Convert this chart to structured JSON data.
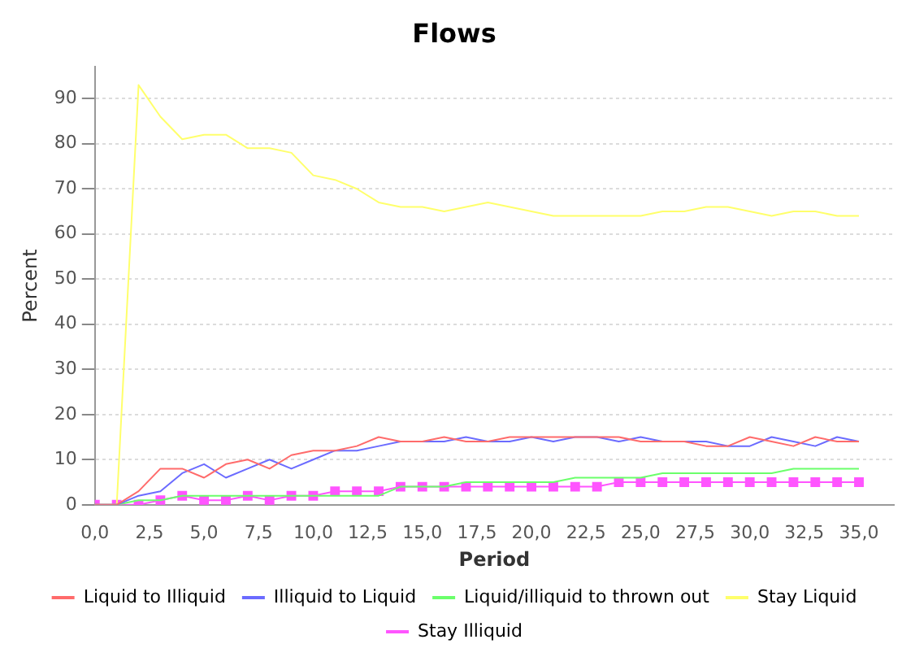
{
  "chart_data": {
    "type": "line",
    "title": "Flows",
    "xlabel": "Period",
    "ylabel": "Percent",
    "x": [
      0,
      1,
      2,
      3,
      4,
      5,
      6,
      7,
      8,
      9,
      10,
      11,
      12,
      13,
      14,
      15,
      16,
      17,
      18,
      19,
      20,
      21,
      22,
      23,
      24,
      25,
      26,
      27,
      28,
      29,
      30,
      31,
      32,
      33,
      34,
      35
    ],
    "xlim": [
      0,
      36.6
    ],
    "ylim": [
      0,
      97
    ],
    "xticks": [
      {
        "value": 0,
        "label": "0,0"
      },
      {
        "value": 2.5,
        "label": "2,5"
      },
      {
        "value": 5,
        "label": "5,0"
      },
      {
        "value": 7.5,
        "label": "7,5"
      },
      {
        "value": 10,
        "label": "10,0"
      },
      {
        "value": 12.5,
        "label": "12,5"
      },
      {
        "value": 15,
        "label": "15,0"
      },
      {
        "value": 17.5,
        "label": "17,5"
      },
      {
        "value": 20,
        "label": "20,0"
      },
      {
        "value": 22.5,
        "label": "22,5"
      },
      {
        "value": 25,
        "label": "25,0"
      },
      {
        "value": 27.5,
        "label": "27,5"
      },
      {
        "value": 30,
        "label": "30,0"
      },
      {
        "value": 32.5,
        "label": "32,5"
      },
      {
        "value": 35,
        "label": "35,0"
      }
    ],
    "yticks": [
      0,
      10,
      20,
      30,
      40,
      50,
      60,
      70,
      80,
      90
    ],
    "grid": "y",
    "legend": "bottom",
    "series": [
      {
        "name": "Liquid to Illiquid",
        "color": "#ff6b6b",
        "marker": "none",
        "values": [
          0,
          0,
          3,
          8,
          8,
          6,
          9,
          10,
          8,
          11,
          12,
          12,
          13,
          15,
          14,
          14,
          15,
          14,
          14,
          15,
          15,
          15,
          15,
          15,
          15,
          14,
          14,
          14,
          13,
          13,
          15,
          14,
          13,
          15,
          14,
          14
        ]
      },
      {
        "name": "Illiquid to Liquid",
        "color": "#6b6bff",
        "marker": "none",
        "values": [
          0,
          0,
          2,
          3,
          7,
          9,
          6,
          8,
          10,
          8,
          10,
          12,
          12,
          13,
          14,
          14,
          14,
          15,
          14,
          14,
          15,
          14,
          15,
          15,
          14,
          15,
          14,
          14,
          14,
          13,
          13,
          15,
          14,
          13,
          15,
          14
        ]
      },
      {
        "name": "Liquid/illiquid to thrown out",
        "color": "#6bff6b",
        "marker": "none",
        "values": [
          0,
          0,
          1,
          1,
          2,
          2,
          2,
          2,
          2,
          2,
          2,
          2,
          2,
          2,
          4,
          4,
          4,
          5,
          5,
          5,
          5,
          5,
          6,
          6,
          6,
          6,
          7,
          7,
          7,
          7,
          7,
          7,
          8,
          8,
          8,
          8
        ]
      },
      {
        "name": "Stay Liquid",
        "color": "#ffff6b",
        "marker": "none",
        "values": [
          0,
          0,
          93,
          86,
          81,
          82,
          82,
          79,
          79,
          78,
          73,
          72,
          70,
          67,
          66,
          66,
          65,
          66,
          67,
          66,
          65,
          64,
          64,
          64,
          64,
          64,
          65,
          65,
          66,
          66,
          65,
          64,
          65,
          65,
          64,
          64
        ]
      },
      {
        "name": "Stay Illiquid",
        "color": "#ff55ff",
        "marker": "square",
        "values": [
          0,
          0,
          0,
          1,
          2,
          1,
          1,
          2,
          1,
          2,
          2,
          3,
          3,
          3,
          4,
          4,
          4,
          4,
          4,
          4,
          4,
          4,
          4,
          4,
          5,
          5,
          5,
          5,
          5,
          5,
          5,
          5,
          5,
          5,
          5,
          5
        ]
      }
    ]
  }
}
